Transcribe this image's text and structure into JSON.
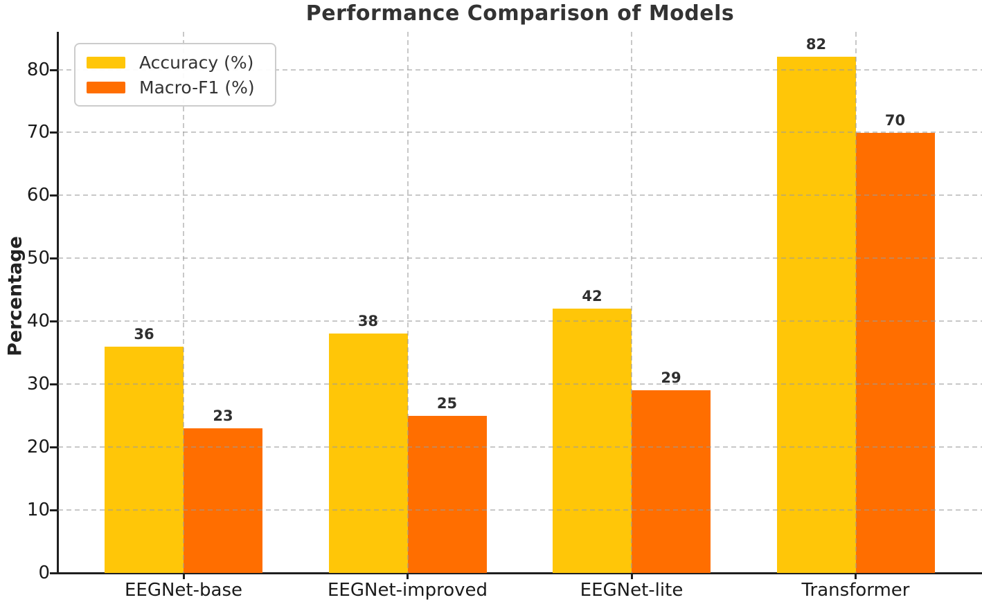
{
  "title": "Performance Comparison of Models",
  "chart_data": {
    "type": "bar",
    "title": "Performance Comparison of Models",
    "xlabel": "",
    "ylabel": "Percentage",
    "categories": [
      "EEGNet-base",
      "EEGNet-improved",
      "EEGNet-lite",
      "Transformer"
    ],
    "series": [
      {
        "name": "Accuracy (%)",
        "color": "#FFC608",
        "values": [
          36,
          38,
          42,
          82
        ]
      },
      {
        "name": "Macro-F1 (%)",
        "color": "#FF6E00",
        "values": [
          23,
          25,
          29,
          70
        ]
      }
    ],
    "bar_value_labels_shown": true,
    "ylim": [
      0,
      86
    ],
    "yticks": [
      0,
      10,
      20,
      30,
      40,
      50,
      60,
      70,
      80
    ],
    "grid": "dashed, horizontal and vertical",
    "legend_position": "upper left",
    "text_color": "#333333",
    "axis_color": "#1f1f1f",
    "grid_color": "#c8c8c8",
    "background_color": "#ffffff"
  }
}
